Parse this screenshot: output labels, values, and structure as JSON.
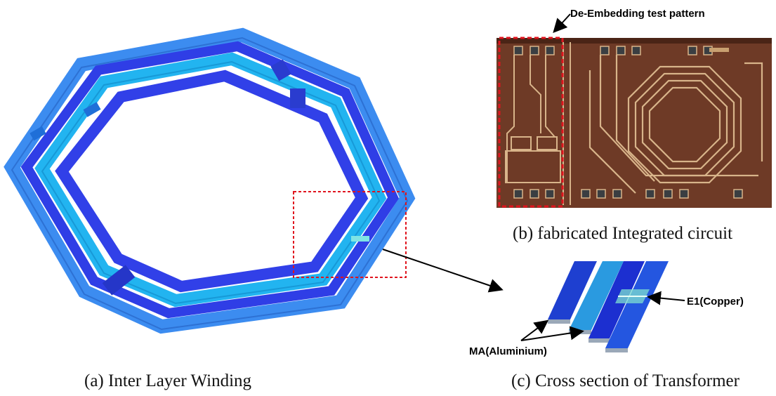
{
  "figure": {
    "captions": {
      "a": "(a) Inter Layer Winding",
      "b": "(b) fabricated Integrated circuit",
      "c": "(c) Cross section of Transformer"
    },
    "annotations": {
      "de_embedding": "De-Embedding test pattern",
      "copper": "E1(Copper)",
      "aluminium": "MA(Aluminium)"
    },
    "colors": {
      "outer_winding": "#3c8cf0",
      "middle_winding": "#22b4f0",
      "inner_winding": "#2f3ee6",
      "chip_background": "#6e3a26",
      "chip_trace": "#d8b48a",
      "highlight_box": "#e0141e"
    }
  }
}
